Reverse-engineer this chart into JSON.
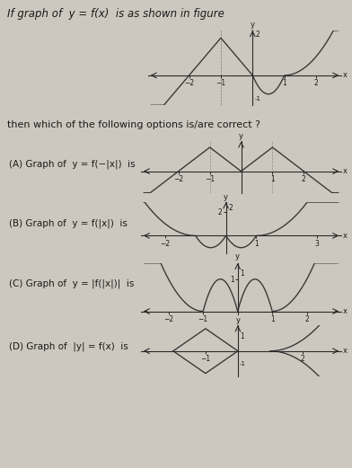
{
  "bg_color": "#cdc8bf",
  "text_color": "#1a1a1a",
  "title_text": "If graph of  y = f(x)  is as shown in figure",
  "question_text": "then which of the following options is/are correct ?",
  "options": [
    "(A) Graph of  y = f(−|x|)  is",
    "(B) Graph of  y = f(|x|)  is",
    "(C) Graph of  y = |f(|x|)|  is",
    "(D) Graph of  |y| = f(x)  is"
  ],
  "curve_color": "#3a3a3a",
  "axis_color": "#2a2a2a",
  "lw": 1.0
}
